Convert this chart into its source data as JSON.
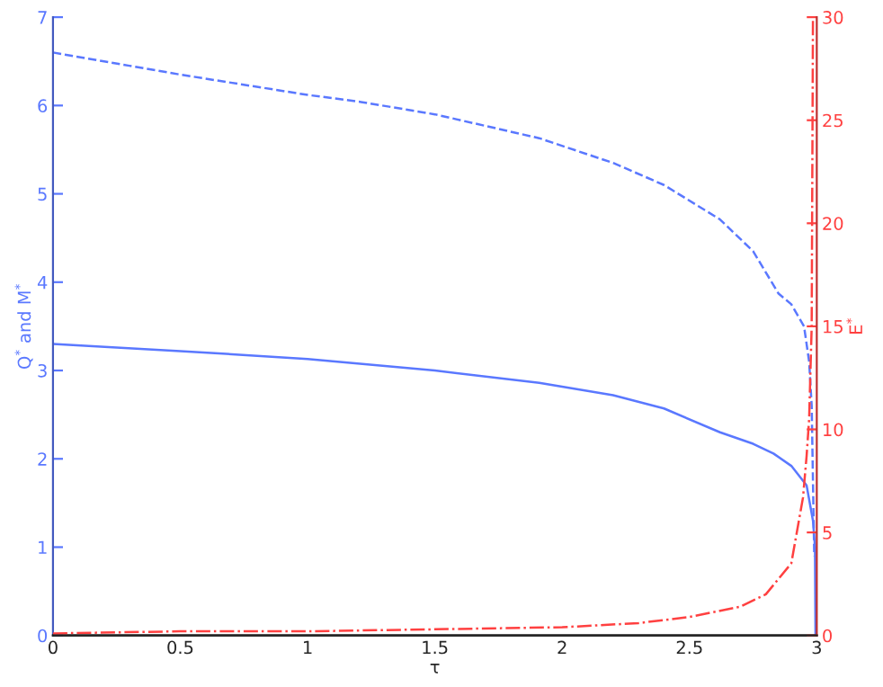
{
  "chart_data": {
    "type": "line",
    "xlabel": "τ",
    "ylabel": "Q$^{*}$ and M$^{*}$",
    "y2label": "E$^{*}$",
    "xlim": [
      0,
      3
    ],
    "xticks": [
      0,
      0.5,
      1,
      1.5,
      2,
      2.5,
      3
    ],
    "ylim": [
      0,
      7
    ],
    "yticks": [
      0,
      1,
      2,
      3,
      4,
      5,
      6,
      7
    ],
    "y2lim": [
      0,
      30
    ],
    "y2ticks": [
      0,
      5,
      10,
      15,
      20,
      25,
      30
    ],
    "grid": false,
    "legend": false,
    "series": [
      {
        "color": "#5a78ff",
        "line_style": "dashed",
        "x": [
          0,
          0.3,
          0.5,
          1.0,
          1.21,
          1.5,
          1.91,
          2.2,
          2.4,
          2.62,
          2.75,
          2.85,
          2.9,
          2.95,
          2.97,
          2.98,
          2.99
        ],
        "values": [
          6.6,
          6.45,
          6.35,
          6.12,
          6.04,
          5.9,
          5.63,
          5.35,
          5.1,
          4.71,
          4.35,
          3.87,
          3.75,
          3.5,
          3.1,
          2.6,
          0.9
        ]
      },
      {
        "color": "#5a78ff",
        "line_style": "solid",
        "x": [
          0,
          0.5,
          1.0,
          1.5,
          1.91,
          2.2,
          2.4,
          2.62,
          2.75,
          2.83,
          2.9,
          2.96,
          2.985,
          2.993,
          2.995
        ],
        "values": [
          3.3,
          3.22,
          3.13,
          3.0,
          2.86,
          2.72,
          2.57,
          2.3,
          2.17,
          2.06,
          1.92,
          1.7,
          1.3,
          1.0,
          0
        ]
      },
      {
        "color": "#ff4040",
        "line_style": "dashdot",
        "axis": "y2",
        "x": [
          0,
          0.5,
          1.0,
          1.5,
          2.0,
          2.3,
          2.5,
          2.7,
          2.8,
          2.9,
          2.946,
          2.96,
          2.97,
          2.98,
          2.985
        ],
        "values": [
          0.1,
          0.2,
          0.2,
          0.3,
          0.4,
          0.6,
          0.9,
          1.4,
          2.0,
          3.5,
          6.7,
          8.7,
          10.5,
          15,
          30
        ]
      }
    ]
  }
}
